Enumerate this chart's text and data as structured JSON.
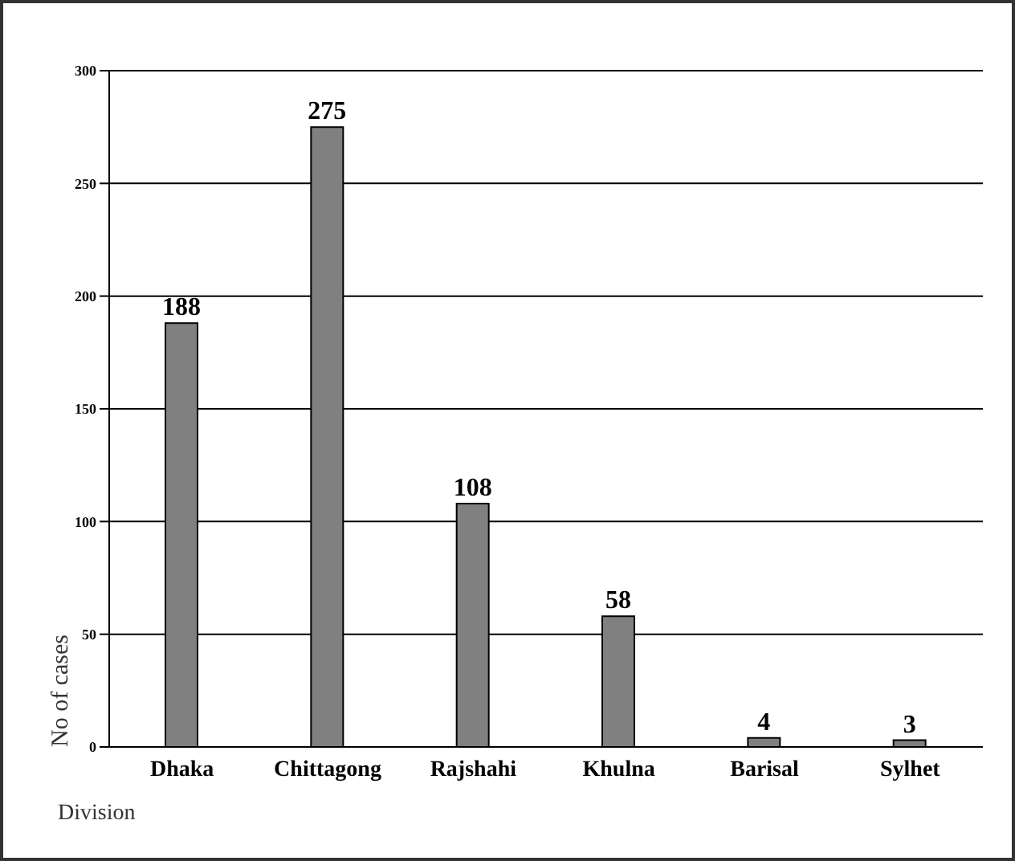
{
  "chart_data": {
    "type": "bar",
    "xlabel": "Division",
    "ylabel": "No of cases",
    "categories": [
      "Dhaka",
      "Chittagong",
      "Rajshahi",
      "Khulna",
      "Barisal",
      "Sylhet"
    ],
    "values": [
      188,
      275,
      108,
      58,
      4,
      3
    ],
    "color": "#808080",
    "ylim": [
      0,
      300
    ],
    "yticks": [
      0,
      50,
      100,
      150,
      200,
      250,
      300
    ],
    "grid": "y",
    "data_labels": true
  }
}
